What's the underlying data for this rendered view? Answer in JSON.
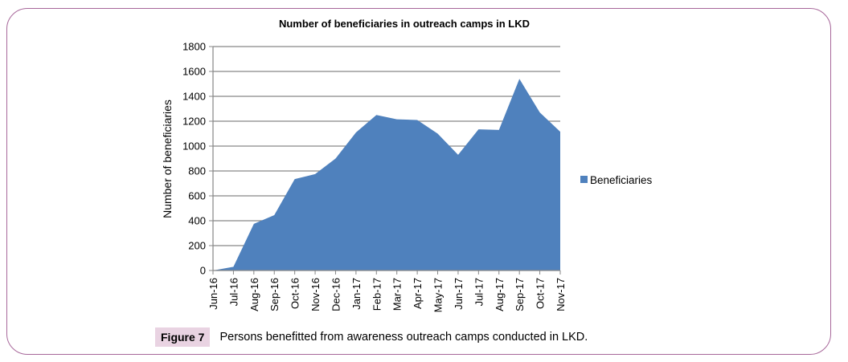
{
  "figure": {
    "label": "Figure 7",
    "caption": "Persons benefitted from awareness outreach camps conducted in LKD."
  },
  "colors": {
    "frame": "#a7679a",
    "series": "#4f81bd",
    "grid": "#868686",
    "badge": "#e9d3e2"
  },
  "chart_data": {
    "type": "area",
    "title": "Number of beneficiaries in outreach camps in LKD",
    "xlabel": "",
    "ylabel": "Number of beneficiaries",
    "ylim": [
      0,
      1800
    ],
    "yticks": [
      0,
      200,
      400,
      600,
      800,
      1000,
      1200,
      1400,
      1600,
      1800
    ],
    "grid": true,
    "legend": "right",
    "categories": [
      "Jun-16",
      "Jul-16",
      "Aug-16",
      "Sep-16",
      "Oct-16",
      "Nov-16",
      "Dec-16",
      "Jan-17",
      "Feb-17",
      "Mar-17",
      "Apr-17",
      "May-17",
      "Jun-17",
      "Jul-17",
      "Aug-17",
      "Sep-17",
      "Oct-17",
      "Nov-17"
    ],
    "series": [
      {
        "name": "Beneficiaries",
        "values": [
          0,
          30,
          375,
          445,
          735,
          775,
          900,
          1110,
          1250,
          1215,
          1210,
          1100,
          930,
          1135,
          1130,
          1540,
          1270,
          1115
        ]
      }
    ]
  }
}
